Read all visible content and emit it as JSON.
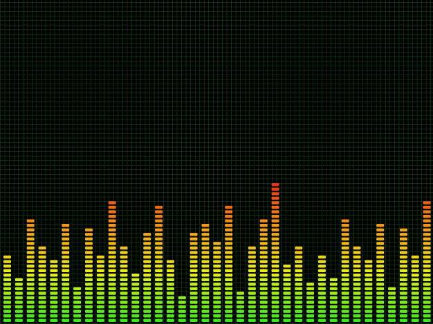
{
  "equalizer": {
    "background_color": "#000000",
    "grid_color": "#0f3a12",
    "segment_gradient": [
      "#3ee81a",
      "#e9ef22",
      "#f39a1f",
      "#e82a12"
    ],
    "max_segments": 32,
    "bar_levels": [
      15,
      10,
      23,
      17,
      14,
      22,
      8,
      21,
      15,
      27,
      17,
      11,
      20,
      26,
      14,
      6,
      20,
      22,
      18,
      26,
      7,
      17,
      23,
      31,
      13,
      17,
      9,
      15,
      10,
      23,
      17,
      14,
      22,
      8,
      21,
      15,
      27
    ]
  }
}
